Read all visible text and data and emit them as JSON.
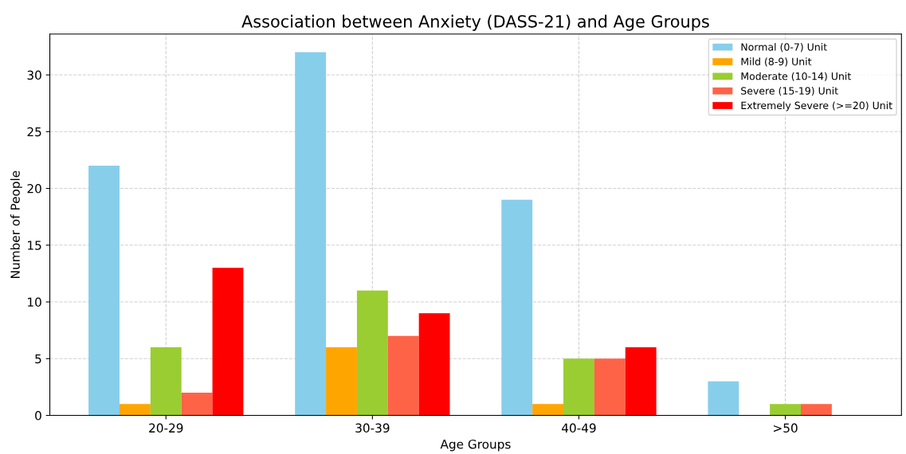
{
  "chart_data": {
    "type": "bar",
    "title": "Association between Anxiety (DASS-21) and Age Groups",
    "xlabel": "Age Groups",
    "ylabel": "Number of People",
    "categories": [
      "20-29",
      "30-39",
      "40-49",
      ">50"
    ],
    "series": [
      {
        "name": "Normal (0-7) Unit",
        "color": "#87ceeb",
        "values": [
          22,
          32,
          19,
          3
        ]
      },
      {
        "name": "Mild (8-9) Unit",
        "color": "#ffa500",
        "values": [
          1,
          6,
          1,
          0
        ]
      },
      {
        "name": "Moderate (10-14) Unit",
        "color": "#9acd32",
        "values": [
          6,
          11,
          5,
          1
        ]
      },
      {
        "name": "Severe (15-19) Unit",
        "color": "#ff6347",
        "values": [
          2,
          7,
          5,
          1
        ]
      },
      {
        "name": "Extremely Severe (>=20) Unit",
        "color": "#ff0000",
        "values": [
          13,
          9,
          6,
          0
        ]
      }
    ],
    "ylim": [
      0,
      33.6
    ],
    "yticks": [
      0,
      5,
      10,
      15,
      20,
      25,
      30
    ],
    "grid": true,
    "legend": "top right"
  }
}
